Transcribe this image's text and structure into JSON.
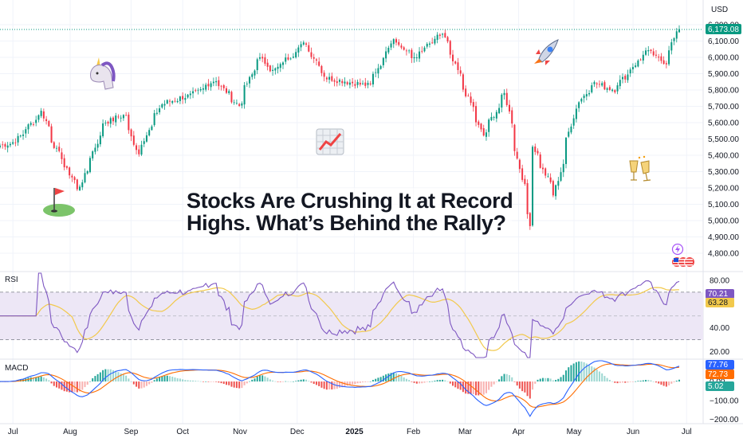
{
  "headline": {
    "line1": "Stocks Are Crushing It at Record",
    "line2": "Highs. What’s Behind the Rally?"
  },
  "currency": "USD",
  "panes": {
    "rsi_label": "RSI",
    "macd_label": "MACD"
  },
  "colors": {
    "up": "#089981",
    "down": "#f23645",
    "rsi_line": "#7e57c2",
    "rsi_ma": "#f2c94c",
    "rsi_band": "#ede7f6",
    "macd_line": "#2962ff",
    "signal_line": "#ff6d00",
    "hist_up": "#26a69a",
    "hist_down": "#ef5350"
  },
  "icons": [
    "unicorn-icon",
    "rocket-icon",
    "chart-increasing-icon",
    "golf-flag-icon",
    "champagne-icon",
    "flash-icon",
    "us-flag-icon"
  ],
  "chart_data": {
    "type": "candlestick",
    "x_months": [
      "Jul",
      "Aug",
      "Sep",
      "Oct",
      "Nov",
      "Dec",
      "2025",
      "Feb",
      "Mar",
      "Apr",
      "May",
      "Jun",
      "Jul"
    ],
    "price_ticks": [
      "6,200.00",
      "6,100.00",
      "6,000.00",
      "5,900.00",
      "5,800.00",
      "5,700.00",
      "5,600.00",
      "5,500.00",
      "5,400.00",
      "5,300.00",
      "5,200.00",
      "5,100.00",
      "5,000.00",
      "4,900.00",
      "4,800.00"
    ],
    "price_ylim": [
      4780,
      6230
    ],
    "last_price": "6,173.08",
    "price_path": [
      {
        "date": "2024-06-24",
        "close": 5460
      },
      {
        "date": "2024-07-01",
        "close": 5480
      },
      {
        "date": "2024-07-16",
        "close": 5667
      },
      {
        "date": "2024-07-24",
        "close": 5430
      },
      {
        "date": "2024-08-05",
        "close": 5186
      },
      {
        "date": "2024-08-19",
        "close": 5600
      },
      {
        "date": "2024-08-30",
        "close": 5648
      },
      {
        "date": "2024-09-06",
        "close": 5408
      },
      {
        "date": "2024-09-19",
        "close": 5713
      },
      {
        "date": "2024-10-08",
        "close": 5780
      },
      {
        "date": "2024-10-18",
        "close": 5864
      },
      {
        "date": "2024-10-31",
        "close": 5705
      },
      {
        "date": "2024-11-11",
        "close": 6001
      },
      {
        "date": "2024-11-19",
        "close": 5916
      },
      {
        "date": "2024-12-06",
        "close": 6090
      },
      {
        "date": "2024-12-18",
        "close": 5872
      },
      {
        "date": "2025-01-10",
        "close": 5827
      },
      {
        "date": "2025-01-23",
        "close": 6118
      },
      {
        "date": "2025-02-03",
        "close": 5994
      },
      {
        "date": "2025-02-19",
        "close": 6144
      },
      {
        "date": "2025-03-13",
        "close": 5521
      },
      {
        "date": "2025-03-25",
        "close": 5776
      },
      {
        "date": "2025-04-08",
        "close": 4982
      },
      {
        "date": "2025-04-09",
        "close": 5456
      },
      {
        "date": "2025-04-21",
        "close": 5158
      },
      {
        "date": "2025-05-02",
        "close": 5686
      },
      {
        "date": "2025-05-12",
        "close": 5844
      },
      {
        "date": "2025-05-23",
        "close": 5802
      },
      {
        "date": "2025-06-10",
        "close": 6038
      },
      {
        "date": "2025-06-20",
        "close": 5967
      },
      {
        "date": "2025-06-27",
        "close": 6173
      }
    ],
    "rsi": {
      "ticks": [
        "80.00",
        "60.00",
        "40.00",
        "20.00"
      ],
      "ylim": [
        15,
        86
      ],
      "upper_band": 70,
      "lower_band": 30,
      "value": "70.21",
      "ma_value": "63.28"
    },
    "macd": {
      "ticks": [
        "0.00",
        "−100.00",
        "−200.00"
      ],
      "ylim": [
        -215,
        110
      ],
      "macd_value": "77.76",
      "signal_value": "72.73",
      "hist_value": "5.02"
    }
  }
}
